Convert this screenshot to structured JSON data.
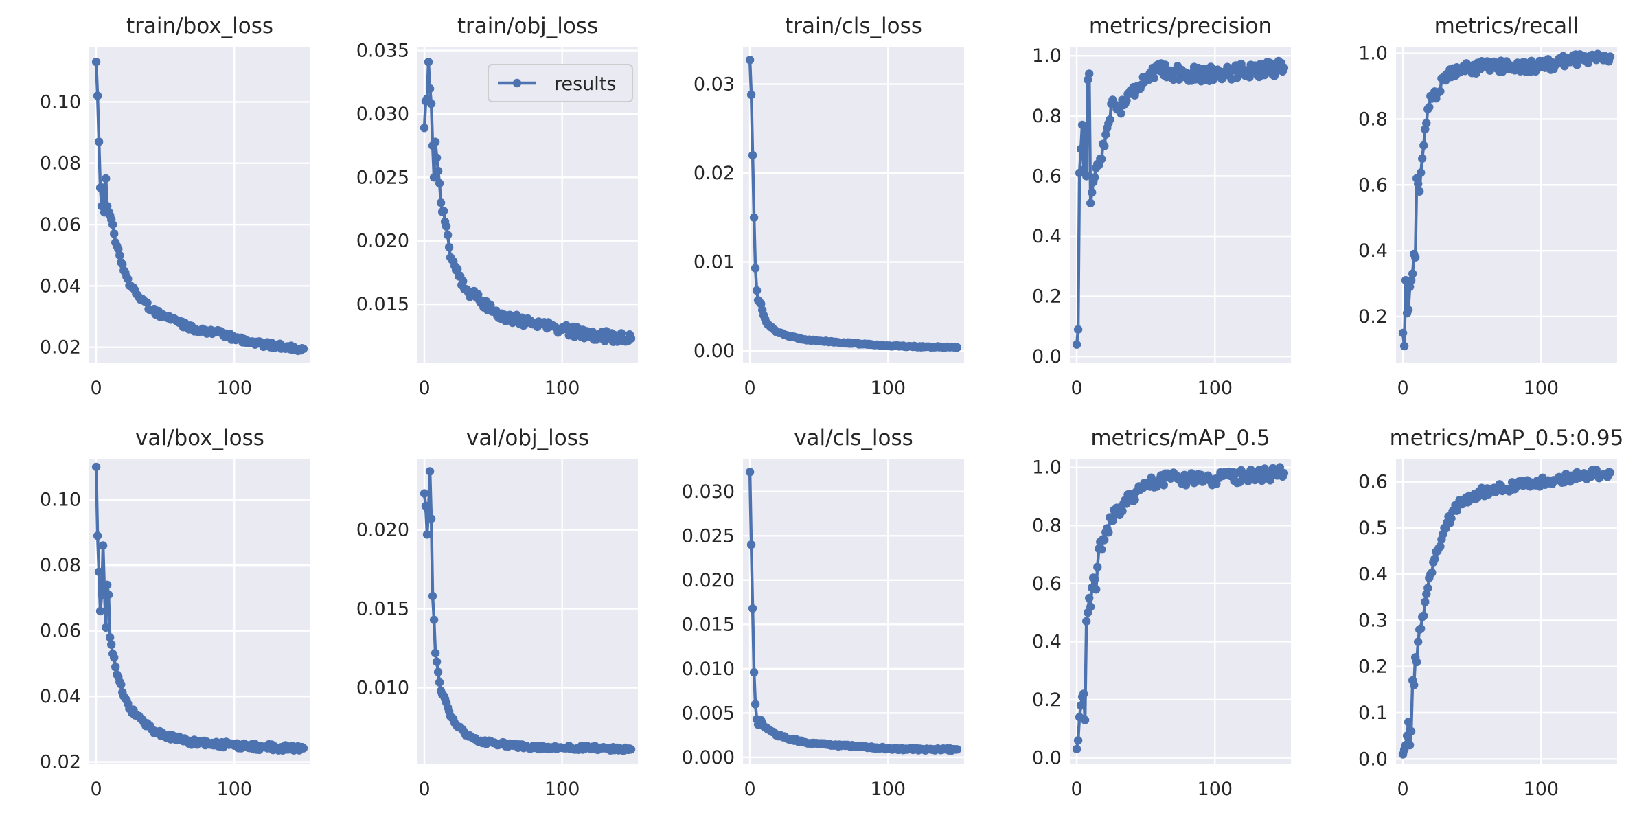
{
  "figure": {
    "legend": "results",
    "accent": "#4c72b0",
    "background": "#eaeaf2"
  },
  "chart_data": [
    {
      "type": "line",
      "title": "train/box_loss",
      "xlim": [
        -5,
        155
      ],
      "ylim": [
        0.015,
        0.118
      ],
      "xticks": [
        0,
        100
      ],
      "yticks": [
        0.02,
        0.04,
        0.06,
        0.08,
        0.1
      ],
      "key": [
        [
          0,
          0.113
        ],
        [
          1,
          0.102
        ],
        [
          2,
          0.087
        ],
        [
          3,
          0.072
        ],
        [
          4,
          0.066
        ],
        [
          5,
          0.072
        ],
        [
          6,
          0.064
        ],
        [
          7,
          0.075
        ],
        [
          8,
          0.066
        ],
        [
          10,
          0.063
        ],
        [
          12,
          0.06
        ],
        [
          13,
          0.057
        ],
        [
          15,
          0.053
        ],
        [
          17,
          0.05
        ],
        [
          20,
          0.045
        ],
        [
          22,
          0.043
        ],
        [
          25,
          0.04
        ],
        [
          30,
          0.037
        ],
        [
          35,
          0.035
        ],
        [
          40,
          0.032
        ],
        [
          50,
          0.03
        ],
        [
          60,
          0.028
        ],
        [
          70,
          0.026
        ],
        [
          85,
          0.025
        ],
        [
          100,
          0.023
        ],
        [
          120,
          0.021
        ],
        [
          150,
          0.0195
        ]
      ],
      "noise": 0.0009
    },
    {
      "type": "line",
      "title": "train/obj_loss",
      "xlim": [
        -5,
        155
      ],
      "ylim": [
        0.0104,
        0.0353
      ],
      "xticks": [
        0,
        100
      ],
      "yticks": [
        0.015,
        0.02,
        0.025,
        0.03,
        0.035
      ],
      "legend": true,
      "key": [
        [
          0,
          0.0289
        ],
        [
          1,
          0.031
        ],
        [
          2,
          0.0312
        ],
        [
          3,
          0.0341
        ],
        [
          4,
          0.032
        ],
        [
          5,
          0.0308
        ],
        [
          6,
          0.0275
        ],
        [
          7,
          0.025
        ],
        [
          8,
          0.0278
        ],
        [
          10,
          0.0255
        ],
        [
          12,
          0.023
        ],
        [
          15,
          0.0215
        ],
        [
          18,
          0.0195
        ],
        [
          20,
          0.0185
        ],
        [
          25,
          0.0172
        ],
        [
          30,
          0.0162
        ],
        [
          40,
          0.0153
        ],
        [
          50,
          0.0145
        ],
        [
          60,
          0.014
        ],
        [
          80,
          0.0135
        ],
        [
          100,
          0.013
        ],
        [
          120,
          0.0126
        ],
        [
          150,
          0.0123
        ]
      ],
      "noise": 0.0004
    },
    {
      "type": "line",
      "title": "train/cls_loss",
      "xlim": [
        -5,
        155
      ],
      "ylim": [
        -0.0013,
        0.0342
      ],
      "xticks": [
        0,
        100
      ],
      "yticks": [
        0.0,
        0.01,
        0.02,
        0.03
      ],
      "key": [
        [
          0,
          0.0327
        ],
        [
          1,
          0.0288
        ],
        [
          2,
          0.022
        ],
        [
          3,
          0.015
        ],
        [
          4,
          0.0093
        ],
        [
          5,
          0.0068
        ],
        [
          6,
          0.0057
        ],
        [
          8,
          0.0053
        ],
        [
          10,
          0.004
        ],
        [
          12,
          0.0032
        ],
        [
          15,
          0.0027
        ],
        [
          20,
          0.0021
        ],
        [
          30,
          0.0016
        ],
        [
          40,
          0.0013
        ],
        [
          60,
          0.001
        ],
        [
          80,
          0.0008
        ],
        [
          100,
          0.0006
        ],
        [
          120,
          0.0005
        ],
        [
          150,
          0.0004
        ]
      ],
      "noise": 7e-05
    },
    {
      "type": "line",
      "title": "metrics/precision",
      "xlim": [
        -5,
        155
      ],
      "ylim": [
        -0.02,
        1.03
      ],
      "xticks": [
        0,
        100
      ],
      "yticks": [
        0.0,
        0.2,
        0.4,
        0.6,
        0.8,
        1.0
      ],
      "key": [
        [
          0,
          0.04
        ],
        [
          1,
          0.09
        ],
        [
          2,
          0.61
        ],
        [
          3,
          0.69
        ],
        [
          4,
          0.77
        ],
        [
          5,
          0.62
        ],
        [
          6,
          0.76
        ],
        [
          7,
          0.6
        ],
        [
          8,
          0.92
        ],
        [
          9,
          0.94
        ],
        [
          10,
          0.51
        ],
        [
          12,
          0.58
        ],
        [
          15,
          0.64
        ],
        [
          20,
          0.7
        ],
        [
          25,
          0.84
        ],
        [
          30,
          0.82
        ],
        [
          40,
          0.88
        ],
        [
          50,
          0.93
        ],
        [
          60,
          0.95
        ],
        [
          80,
          0.94
        ],
        [
          100,
          0.94
        ],
        [
          120,
          0.95
        ],
        [
          150,
          0.96
        ]
      ],
      "noise": 0.025
    },
    {
      "type": "line",
      "title": "metrics/recall",
      "xlim": [
        -5,
        155
      ],
      "ylim": [
        0.06,
        1.02
      ],
      "xticks": [
        0,
        100
      ],
      "yticks": [
        0.2,
        0.4,
        0.6,
        0.8,
        1.0
      ],
      "key": [
        [
          0,
          0.15
        ],
        [
          1,
          0.11
        ],
        [
          2,
          0.31
        ],
        [
          3,
          0.21
        ],
        [
          4,
          0.22
        ],
        [
          5,
          0.29
        ],
        [
          6,
          0.31
        ],
        [
          7,
          0.33
        ],
        [
          8,
          0.39
        ],
        [
          9,
          0.38
        ],
        [
          10,
          0.62
        ],
        [
          12,
          0.58
        ],
        [
          14,
          0.68
        ],
        [
          15,
          0.72
        ],
        [
          18,
          0.83
        ],
        [
          20,
          0.87
        ],
        [
          25,
          0.88
        ],
        [
          30,
          0.93
        ],
        [
          40,
          0.95
        ],
        [
          60,
          0.96
        ],
        [
          80,
          0.96
        ],
        [
          100,
          0.96
        ],
        [
          120,
          0.98
        ],
        [
          150,
          0.99
        ]
      ],
      "noise": 0.018
    },
    {
      "type": "line",
      "title": "val/box_loss",
      "xlim": [
        -5,
        155
      ],
      "ylim": [
        0.0195,
        0.1125
      ],
      "xticks": [
        0,
        100
      ],
      "yticks": [
        0.02,
        0.04,
        0.06,
        0.08,
        0.1
      ],
      "key": [
        [
          0,
          0.11
        ],
        [
          1,
          0.089
        ],
        [
          2,
          0.078
        ],
        [
          3,
          0.066
        ],
        [
          4,
          0.071
        ],
        [
          5,
          0.086
        ],
        [
          6,
          0.072
        ],
        [
          7,
          0.061
        ],
        [
          8,
          0.074
        ],
        [
          9,
          0.071
        ],
        [
          10,
          0.058
        ],
        [
          12,
          0.053
        ],
        [
          14,
          0.049
        ],
        [
          16,
          0.046
        ],
        [
          20,
          0.04
        ],
        [
          25,
          0.036
        ],
        [
          30,
          0.034
        ],
        [
          40,
          0.03
        ],
        [
          50,
          0.028
        ],
        [
          70,
          0.026
        ],
        [
          100,
          0.025
        ],
        [
          120,
          0.0245
        ],
        [
          150,
          0.0242
        ]
      ],
      "noise": 0.0009
    },
    {
      "type": "line",
      "title": "val/obj_loss",
      "xlim": [
        -5,
        155
      ],
      "ylim": [
        0.0052,
        0.0245
      ],
      "xticks": [
        0,
        100
      ],
      "yticks": [
        0.01,
        0.015,
        0.02
      ],
      "key": [
        [
          0,
          0.0223
        ],
        [
          1,
          0.0215
        ],
        [
          2,
          0.0197
        ],
        [
          3,
          0.0212
        ],
        [
          4,
          0.0237
        ],
        [
          5,
          0.0207
        ],
        [
          6,
          0.0158
        ],
        [
          7,
          0.0143
        ],
        [
          8,
          0.0122
        ],
        [
          10,
          0.011
        ],
        [
          12,
          0.0098
        ],
        [
          15,
          0.0093
        ],
        [
          18,
          0.0085
        ],
        [
          20,
          0.0081
        ],
        [
          25,
          0.0075
        ],
        [
          30,
          0.007
        ],
        [
          40,
          0.0066
        ],
        [
          60,
          0.0064
        ],
        [
          80,
          0.0062
        ],
        [
          100,
          0.0062
        ],
        [
          120,
          0.0062
        ],
        [
          150,
          0.0061
        ]
      ],
      "noise": 0.00012
    },
    {
      "type": "line",
      "title": "val/cls_loss",
      "xlim": [
        -5,
        155
      ],
      "ylim": [
        -0.0007,
        0.0337
      ],
      "xticks": [
        0,
        100
      ],
      "yticks": [
        0.0,
        0.005,
        0.01,
        0.015,
        0.02,
        0.025,
        0.03
      ],
      "key": [
        [
          0,
          0.0322
        ],
        [
          1,
          0.024
        ],
        [
          2,
          0.0168
        ],
        [
          3,
          0.0096
        ],
        [
          4,
          0.006
        ],
        [
          5,
          0.0043
        ],
        [
          6,
          0.0037
        ],
        [
          8,
          0.0042
        ],
        [
          10,
          0.0035
        ],
        [
          15,
          0.003
        ],
        [
          20,
          0.0025
        ],
        [
          30,
          0.002
        ],
        [
          40,
          0.0017
        ],
        [
          60,
          0.0014
        ],
        [
          80,
          0.0012
        ],
        [
          100,
          0.001
        ],
        [
          120,
          0.0009
        ],
        [
          150,
          0.0009
        ]
      ],
      "noise": 0.00012
    },
    {
      "type": "line",
      "title": "metrics/mAP_0.5",
      "xlim": [
        -5,
        155
      ],
      "ylim": [
        -0.02,
        1.03
      ],
      "xticks": [
        0,
        100
      ],
      "yticks": [
        0.0,
        0.2,
        0.4,
        0.6,
        0.8,
        1.0
      ],
      "key": [
        [
          0,
          0.03
        ],
        [
          1,
          0.06
        ],
        [
          2,
          0.14
        ],
        [
          3,
          0.18
        ],
        [
          4,
          0.21
        ],
        [
          5,
          0.22
        ],
        [
          6,
          0.13
        ],
        [
          7,
          0.47
        ],
        [
          8,
          0.5
        ],
        [
          9,
          0.55
        ],
        [
          10,
          0.52
        ],
        [
          12,
          0.62
        ],
        [
          14,
          0.58
        ],
        [
          16,
          0.72
        ],
        [
          20,
          0.75
        ],
        [
          25,
          0.82
        ],
        [
          30,
          0.85
        ],
        [
          40,
          0.9
        ],
        [
          50,
          0.94
        ],
        [
          60,
          0.96
        ],
        [
          80,
          0.96
        ],
        [
          100,
          0.96
        ],
        [
          120,
          0.97
        ],
        [
          150,
          0.98
        ]
      ],
      "noise": 0.022
    },
    {
      "type": "line",
      "title": "metrics/mAP_0.5:0.95",
      "xlim": [
        -5,
        155
      ],
      "ylim": [
        -0.01,
        0.65
      ],
      "xticks": [
        0,
        100
      ],
      "yticks": [
        0.0,
        0.1,
        0.2,
        0.3,
        0.4,
        0.5,
        0.6
      ],
      "key": [
        [
          0,
          0.01
        ],
        [
          1,
          0.02
        ],
        [
          2,
          0.03
        ],
        [
          3,
          0.05
        ],
        [
          4,
          0.08
        ],
        [
          5,
          0.03
        ],
        [
          6,
          0.06
        ],
        [
          7,
          0.17
        ],
        [
          8,
          0.16
        ],
        [
          9,
          0.22
        ],
        [
          10,
          0.21
        ],
        [
          12,
          0.28
        ],
        [
          15,
          0.31
        ],
        [
          18,
          0.37
        ],
        [
          20,
          0.4
        ],
        [
          25,
          0.45
        ],
        [
          30,
          0.5
        ],
        [
          40,
          0.55
        ],
        [
          50,
          0.57
        ],
        [
          60,
          0.58
        ],
        [
          80,
          0.59
        ],
        [
          100,
          0.6
        ],
        [
          120,
          0.61
        ],
        [
          150,
          0.62
        ]
      ],
      "noise": 0.01
    }
  ]
}
